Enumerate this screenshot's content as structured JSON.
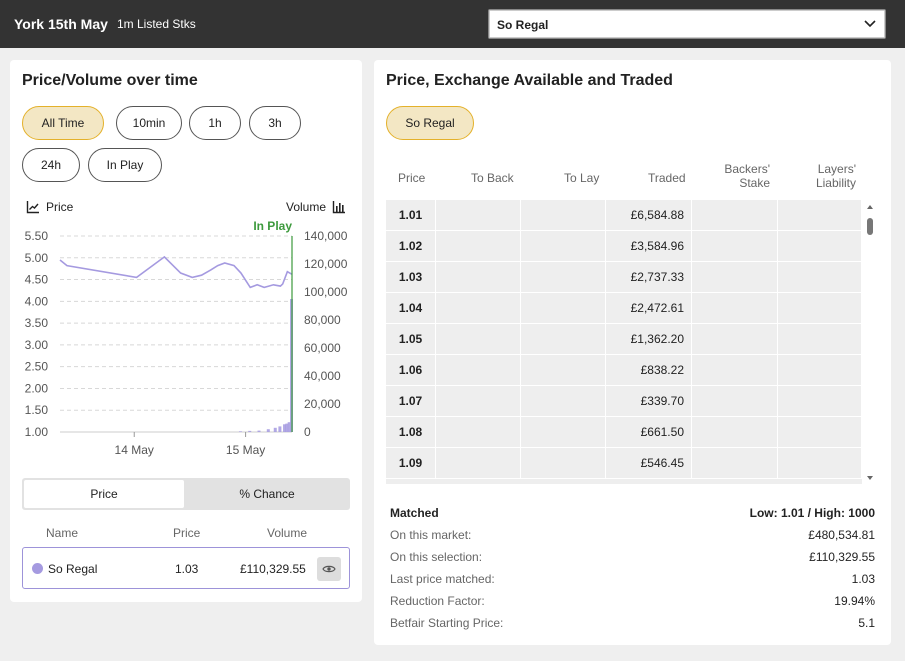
{
  "header": {
    "race_title": "York 15th May",
    "race_subtitle": "1m Listed Stks",
    "runner_select_value": "So Regal"
  },
  "left_panel": {
    "title": "Price/Volume over time",
    "time_filters": [
      {
        "label": "All Time",
        "active": true
      },
      {
        "label": "10min",
        "active": false
      },
      {
        "label": "1h",
        "active": false
      },
      {
        "label": "3h",
        "active": false
      },
      {
        "label": "24h",
        "active": false
      },
      {
        "label": "In Play",
        "active": false
      }
    ],
    "price_legend": "Price",
    "volume_legend": "Volume",
    "toggle": {
      "price": "Price",
      "percent_chance": "% Chance",
      "selected": "Price"
    },
    "selection_table": {
      "headers": {
        "name": "Name",
        "price": "Price",
        "volume": "Volume"
      },
      "row": {
        "name": "So Regal",
        "price": "1.03",
        "volume": "£110,329.55",
        "color": "#a59ae0"
      }
    }
  },
  "chart_data": {
    "type": "line",
    "in_play_marker": "In Play",
    "x_ticks": [
      "14 May",
      "15 May"
    ],
    "y_left_ticks": [
      "5.50",
      "5.00",
      "4.50",
      "4.00",
      "3.50",
      "3.00",
      "2.50",
      "2.00",
      "1.50",
      "1.00"
    ],
    "y_right_ticks": [
      "140,000",
      "120,000",
      "100,000",
      "80,000",
      "60,000",
      "40,000",
      "20,000",
      "0"
    ],
    "ylim_price": [
      1.0,
      5.5
    ],
    "ylim_volume": [
      0,
      140000
    ],
    "price_series": {
      "color": "#a59ae0",
      "x": [
        0,
        0.03,
        0.33,
        0.45,
        0.52,
        0.57,
        0.61,
        0.65,
        0.68,
        0.71,
        0.75,
        0.78,
        0.82,
        0.85,
        0.88,
        0.9,
        0.92,
        0.95,
        0.96,
        0.98,
        1.0
      ],
      "y": [
        4.95,
        4.82,
        4.55,
        5.02,
        4.65,
        4.55,
        4.6,
        4.72,
        4.82,
        4.88,
        4.82,
        4.65,
        4.32,
        4.38,
        4.32,
        4.35,
        4.38,
        4.35,
        4.4,
        4.68,
        4.62
      ]
    },
    "volume_series": {
      "color": "#a59ae0",
      "x": [
        0.78,
        0.82,
        0.86,
        0.9,
        0.93,
        0.95,
        0.97,
        0.98,
        0.99,
        1.0
      ],
      "y": [
        500,
        800,
        1000,
        2000,
        3000,
        4000,
        5500,
        6000,
        7000,
        95000
      ]
    },
    "in_play_color": "#3d9a3d"
  },
  "right_panel": {
    "title": "Price, Exchange Available and Traded",
    "runner_pill": "So Regal",
    "ladder_headers": {
      "price": "Price",
      "to_back": "To Back",
      "to_lay": "To Lay",
      "traded": "Traded",
      "backers_stake_1": "Backers'",
      "backers_stake_2": "Stake",
      "layers_liability_1": "Layers'",
      "layers_liability_2": "Liability"
    },
    "ladder_rows": [
      {
        "price": "1.01",
        "traded": "£6,584.88"
      },
      {
        "price": "1.02",
        "traded": "£3,584.96"
      },
      {
        "price": "1.03",
        "traded": "£2,737.33"
      },
      {
        "price": "1.04",
        "traded": "£2,472.61"
      },
      {
        "price": "1.05",
        "traded": "£1,362.20"
      },
      {
        "price": "1.06",
        "traded": "£838.22"
      },
      {
        "price": "1.07",
        "traded": "£339.70"
      },
      {
        "price": "1.08",
        "traded": "£661.50"
      },
      {
        "price": "1.09",
        "traded": "£546.45"
      }
    ],
    "matched": {
      "label": "Matched",
      "low_high": "Low: 1.01 / High: 1000",
      "stats": [
        {
          "label": "On this market:",
          "value": "£480,534.81"
        },
        {
          "label": "On this selection:",
          "value": "£110,329.55"
        },
        {
          "label": "Last price matched:",
          "value": "1.03"
        },
        {
          "label": "Reduction Factor:",
          "value": "19.94%"
        },
        {
          "label": "Betfair Starting Price:",
          "value": "5.1"
        }
      ]
    }
  }
}
